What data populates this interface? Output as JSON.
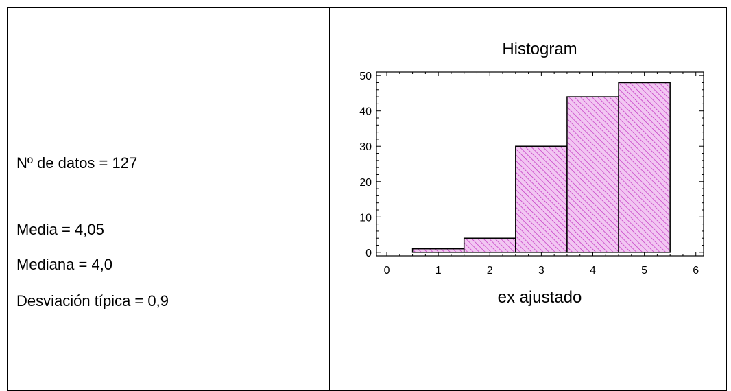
{
  "stats": {
    "n_label": "Nº de datos = 127",
    "mean_label": "Media = 4,05",
    "median_label": "Mediana = 4,0",
    "std_label": "Desviación típica = 0,9"
  },
  "chart_data": {
    "type": "bar",
    "title": "Histogram",
    "xlabel": "ex ajustado",
    "ylabel": "",
    "bins": [
      {
        "x0": 0.5,
        "x1": 1.5,
        "value": 1
      },
      {
        "x0": 1.5,
        "x1": 2.5,
        "value": 4
      },
      {
        "x0": 2.5,
        "x1": 3.5,
        "value": 30
      },
      {
        "x0": 3.5,
        "x1": 4.5,
        "value": 44
      },
      {
        "x0": 4.5,
        "x1": 5.5,
        "value": 48
      }
    ],
    "xlim": [
      -0.2,
      6.15
    ],
    "ylim": [
      -1,
      51
    ],
    "xticks": [
      0,
      1,
      2,
      3,
      4,
      5,
      6
    ],
    "yticks": [
      0,
      10,
      20,
      30,
      40,
      50
    ],
    "grid": false,
    "colors": {
      "bar_fill": "#f2c6f2",
      "hatch": "#c030c0",
      "bar_stroke": "#000000"
    }
  }
}
